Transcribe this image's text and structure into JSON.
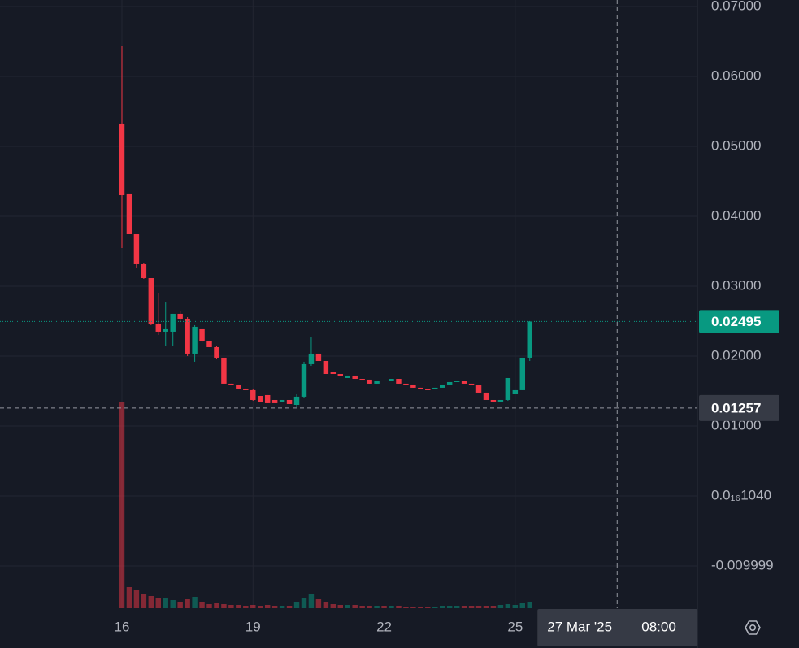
{
  "chart_data": {
    "type": "candlestick",
    "x": [
      16,
      16.1667,
      16.3333,
      16.5,
      16.6667,
      16.8333,
      17,
      17.1667,
      17.3333,
      17.5,
      17.6667,
      17.8333,
      18,
      18.1667,
      18.3333,
      18.5,
      18.6667,
      18.8333,
      19,
      19.1667,
      19.3333,
      19.5,
      19.6667,
      19.8333,
      20,
      20.1667,
      20.3333,
      20.5,
      20.6667,
      20.8333,
      21,
      21.1667,
      21.3333,
      21.5,
      21.6667,
      21.8333,
      22,
      22.1667,
      22.3333,
      22.5,
      22.6667,
      22.8333,
      23,
      23.1667,
      23.3333,
      23.5,
      23.6667,
      23.8333,
      24,
      24.1667,
      24.3333,
      24.5,
      24.6667,
      24.8333,
      25,
      25.1667,
      25.3333
    ],
    "open": [
      0.05326,
      0.04326,
      0.03744,
      0.03314,
      0.03116,
      0.02465,
      0.02349,
      0.02349,
      0.02605,
      0.02535,
      0.02035,
      0.02384,
      0.02209,
      0.02128,
      0.01977,
      0.01605,
      0.01593,
      0.01535,
      0.01512,
      0.0143,
      0.01442,
      0.01372,
      0.01337,
      0.01372,
      0.01302,
      0.01419,
      0.01884,
      0.02035,
      0.0193,
      0.01767,
      0.01744,
      0.01686,
      0.01721,
      0.01674,
      0.01663,
      0.01605,
      0.01651,
      0.0164,
      0.01674,
      0.01605,
      0.01593,
      0.01547,
      0.01523,
      0.01523,
      0.01547,
      0.01593,
      0.01628,
      0.0164,
      0.01605,
      0.01581,
      0.01477,
      0.01372,
      0.01349,
      0.01372,
      0.01465,
      0.01512,
      0.01977
    ],
    "high": [
      0.0643,
      0.04326,
      0.03744,
      0.03337,
      0.03116,
      0.02907,
      0.02767,
      0.02605,
      0.0264,
      0.02558,
      0.02442,
      0.02384,
      0.02209,
      0.02151,
      0.01977,
      0.01605,
      0.01593,
      0.01535,
      0.01535,
      0.0143,
      0.01442,
      0.01372,
      0.01372,
      0.01372,
      0.01453,
      0.01919,
      0.02267,
      0.02035,
      0.0193,
      0.01767,
      0.01744,
      0.01721,
      0.01721,
      0.01674,
      0.01663,
      0.01651,
      0.01651,
      0.01674,
      0.01674,
      0.01605,
      0.01593,
      0.01547,
      0.01523,
      0.01547,
      0.01593,
      0.01628,
      0.01651,
      0.0164,
      0.01605,
      0.01581,
      0.01477,
      0.01372,
      0.01372,
      0.01686,
      0.01512,
      0.01977,
      0.02495
    ],
    "low": [
      0.03547,
      0.03744,
      0.03256,
      0.03105,
      0.02442,
      0.02302,
      0.02151,
      0.02151,
      0.025,
      0.02,
      0.01919,
      0.02186,
      0.02128,
      0.01953,
      0.01605,
      0.01593,
      0.01535,
      0.01512,
      0.0136,
      0.01337,
      0.01326,
      0.01326,
      0.01337,
      0.01314,
      0.01279,
      0.01395,
      0.0186,
      0.0193,
      0.01744,
      0.01744,
      0.01709,
      0.01686,
      0.01674,
      0.01663,
      0.01605,
      0.01605,
      0.0164,
      0.0164,
      0.01605,
      0.01593,
      0.01547,
      0.01523,
      0.01512,
      0.01523,
      0.01547,
      0.01593,
      0.01628,
      0.01605,
      0.01581,
      0.01477,
      0.01372,
      0.01349,
      0.01349,
      0.0136,
      0.01465,
      0.01512,
      0.0193
    ],
    "close": [
      0.04302,
      0.03744,
      0.03314,
      0.03116,
      0.02465,
      0.02349,
      0.02384,
      0.02605,
      0.02535,
      0.02035,
      0.02419,
      0.02209,
      0.02128,
      0.01977,
      0.01605,
      0.01593,
      0.01535,
      0.01512,
      0.01372,
      0.01337,
      0.01326,
      0.01326,
      0.01372,
      0.01314,
      0.01419,
      0.01884,
      0.02035,
      0.0193,
      0.01744,
      0.01744,
      0.01709,
      0.01721,
      0.01674,
      0.01663,
      0.01605,
      0.01651,
      0.0164,
      0.01674,
      0.01605,
      0.01593,
      0.01547,
      0.01523,
      0.01512,
      0.01547,
      0.01593,
      0.01628,
      0.01651,
      0.01605,
      0.01581,
      0.01477,
      0.01372,
      0.01349,
      0.01372,
      0.01686,
      0.01512,
      0.01977,
      0.02495
    ],
    "volume": [
      253,
      26,
      22,
      18,
      15,
      12,
      13,
      10,
      8,
      11,
      14,
      7,
      5,
      6,
      5,
      4,
      4,
      3,
      4,
      3,
      4,
      3,
      3,
      3,
      7,
      12,
      18,
      11,
      7,
      5,
      4,
      4,
      4,
      3,
      3,
      3,
      3,
      3,
      3,
      2,
      2,
      2,
      2,
      2,
      3,
      3,
      3,
      3,
      3,
      3,
      3,
      3,
      4,
      5,
      4,
      6,
      7
    ],
    "volume_lim": [
      0,
      270
    ],
    "up_color": "#089981",
    "down_color": "#f23645",
    "xlim": [
      13.21,
      29.17
    ],
    "xticks": [
      16,
      19,
      22,
      25
    ],
    "ylim": [
      -0.01605,
      0.07093
    ],
    "yticks": [
      {
        "value": 0.07,
        "label": "0.07000"
      },
      {
        "value": 0.06,
        "label": "0.06000"
      },
      {
        "value": 0.05,
        "label": "0.05000"
      },
      {
        "value": 0.04,
        "label": "0.04000"
      },
      {
        "value": 0.03,
        "label": "0.03000"
      },
      {
        "value": 0.02,
        "label": "0.02000"
      },
      {
        "value": 0.01,
        "label": "0.01000"
      },
      {
        "value": 1.04e-17,
        "label": "0.0₁₆1040"
      },
      -0.009999
    ],
    "grid": true,
    "last_price": 0.02495,
    "crosshair": {
      "x": 27.3333,
      "y": 0.01257,
      "date_label": "27 Mar '25",
      "time_label": "08:00"
    }
  }
}
